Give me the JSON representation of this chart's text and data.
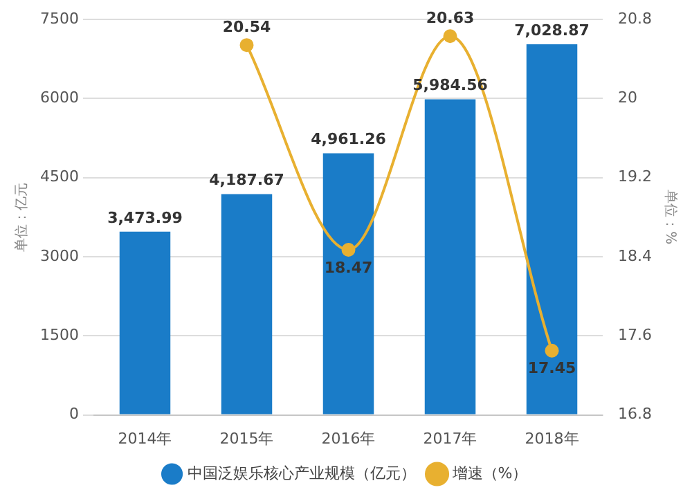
{
  "chart_data": {
    "type": "bar",
    "categories": [
      "2014年",
      "2015年",
      "2016年",
      "2017年",
      "2018年"
    ],
    "series": [
      {
        "name": "中国泛娱乐核心产业规模（亿元）",
        "color": "#1a7cc8",
        "values": [
          3473.99,
          4187.67,
          4961.26,
          5984.56,
          7028.87
        ],
        "value_labels": [
          "3,473.99",
          "4,187.67",
          "4,961.26",
          "5,984.56",
          "7,028.87"
        ]
      },
      {
        "name": "增速（%）",
        "type": "line",
        "axis": "y2",
        "color": "#e8b030",
        "values": [
          null,
          20.54,
          18.47,
          20.63,
          17.45
        ]
      }
    ],
    "ylabel": "单位：亿元",
    "y2label": "单位：%",
    "ylim": [
      0,
      7500
    ],
    "yticks": [
      0,
      1500,
      3000,
      4500,
      6000,
      7500
    ],
    "y2lim": [
      16.8,
      20.8
    ],
    "y2ticks": [
      16.8,
      17.6,
      18.4,
      19.2,
      20,
      20.8
    ],
    "grid": "y",
    "legend": "bottom",
    "data_labels": true,
    "marker": "circle"
  }
}
